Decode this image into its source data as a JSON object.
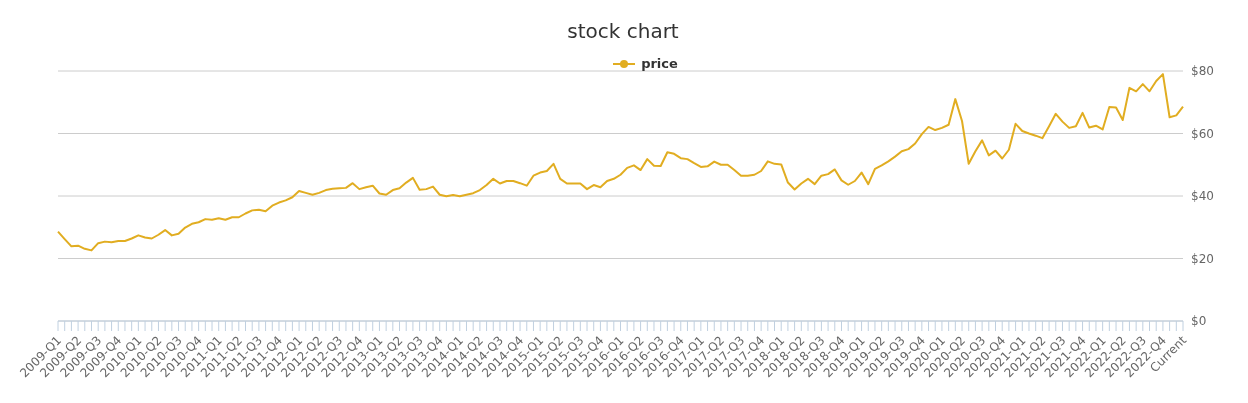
{
  "chart_data": {
    "type": "line",
    "title": "stock chart",
    "categories": [
      "2009-Q1",
      null,
      null,
      "2009-Q2",
      null,
      null,
      "2009-Q3",
      null,
      null,
      "2009-Q4",
      null,
      null,
      "2010-Q1",
      null,
      null,
      "2010-Q2",
      null,
      null,
      "2010-Q3",
      null,
      null,
      "2010-Q4",
      null,
      null,
      "2011-Q1",
      null,
      null,
      "2011-Q2",
      null,
      null,
      "2011-Q3",
      null,
      null,
      "2011-Q4",
      null,
      null,
      "2012-Q1",
      null,
      null,
      "2012-Q2",
      null,
      null,
      "2012-Q3",
      null,
      null,
      "2012-Q4",
      null,
      null,
      "2013-Q1",
      null,
      null,
      "2013-Q2",
      null,
      null,
      "2013-Q3",
      null,
      null,
      "2013-Q4",
      null,
      null,
      "2014-Q1",
      null,
      null,
      "2014-Q2",
      null,
      null,
      "2014-Q3",
      null,
      null,
      "2014-Q4",
      null,
      null,
      "2015-Q1",
      null,
      null,
      "2015-Q2",
      null,
      null,
      "2015-Q3",
      null,
      null,
      "2015-Q4",
      null,
      null,
      "2016-Q1",
      null,
      null,
      "2016-Q2",
      null,
      null,
      "2016-Q3",
      null,
      null,
      "2016-Q4",
      null,
      null,
      "2017-Q1",
      null,
      null,
      "2017-Q2",
      null,
      null,
      "2017-Q3",
      null,
      null,
      "2017-Q4",
      null,
      null,
      "2018-Q1",
      null,
      null,
      "2018-Q2",
      null,
      null,
      "2018-Q3",
      null,
      null,
      "2018-Q4",
      null,
      null,
      "2019-Q1",
      null,
      null,
      "2019-Q2",
      null,
      null,
      "2019-Q3",
      null,
      null,
      "2019-Q4",
      null,
      null,
      "2020-Q1",
      null,
      null,
      "2020-Q2",
      null,
      null,
      "2020-Q3",
      null,
      null,
      "2020-Q4",
      null,
      null,
      "2021-Q1",
      null,
      null,
      "2021-Q2",
      null,
      null,
      "2021-Q3",
      null,
      null,
      "2021-Q4",
      null,
      null,
      "2022-Q1",
      null,
      null,
      "2022-Q2",
      null,
      null,
      "2022-Q3",
      null,
      null,
      "2022-Q4",
      null,
      null,
      "Current"
    ],
    "series": [
      {
        "name": "price",
        "color": "#e1ad21",
        "values": [
          28.6,
          26.2,
          23.9,
          24.1,
          23.1,
          22.6,
          24.9,
          25.4,
          25.2,
          25.6,
          25.6,
          26.4,
          27.4,
          26.7,
          26.4,
          27.6,
          29.1,
          27.4,
          27.9,
          29.9,
          31.1,
          31.6,
          32.6,
          32.4,
          32.9,
          32.4,
          33.2,
          33.2,
          34.4,
          35.4,
          35.6,
          35.1,
          36.9,
          37.9,
          38.6,
          39.6,
          41.6,
          41.0,
          40.4,
          41.0,
          41.9,
          42.3,
          42.5,
          42.6,
          44.1,
          42.2,
          42.8,
          43.3,
          40.8,
          40.4,
          41.9,
          42.5,
          44.3,
          45.8,
          42.0,
          42.2,
          43.0,
          40.4,
          39.9,
          40.3,
          39.9,
          40.4,
          40.9,
          41.9,
          43.5,
          45.5,
          44.0,
          44.8,
          44.8,
          44.1,
          43.3,
          46.5,
          47.5,
          48.0,
          50.3,
          45.5,
          44.0,
          44.0,
          44.0,
          42.2,
          43.5,
          42.8,
          44.8,
          45.5,
          46.8,
          49.0,
          49.8,
          48.3,
          51.8,
          49.7,
          49.6,
          54.0,
          53.5,
          52.1,
          51.8,
          50.5,
          49.3,
          49.5,
          51.0,
          50.0,
          50.0,
          48.3,
          46.5,
          46.5,
          46.8,
          48.0,
          51.1,
          50.3,
          50.1,
          44.3,
          42.1,
          44.0,
          45.5,
          43.8,
          46.5,
          47.0,
          48.5,
          45.0,
          43.6,
          44.8,
          47.5,
          43.8,
          48.7,
          49.8,
          51.1,
          52.6,
          54.3,
          55.0,
          56.8,
          59.8,
          62.1,
          61.1,
          61.8,
          62.8,
          71.0,
          64.0,
          50.3,
          54.3,
          57.8,
          53.0,
          54.5,
          52.0,
          54.8,
          63.1,
          60.8,
          60.0,
          59.3,
          58.5,
          62.3,
          66.3,
          63.8,
          61.8,
          62.3,
          66.6,
          61.9,
          62.5,
          61.3,
          68.5,
          68.3,
          64.3,
          74.6,
          73.5,
          75.8,
          73.5,
          76.8,
          79.0,
          65.2,
          65.8,
          68.6
        ]
      }
    ],
    "ylim": [
      0,
      80
    ],
    "yticks": [
      {
        "value": 0,
        "label": "$0"
      },
      {
        "value": 20,
        "label": "$20"
      },
      {
        "value": 40,
        "label": "$40"
      },
      {
        "value": 60,
        "label": "$60"
      },
      {
        "value": 80,
        "label": "$80"
      }
    ],
    "grid": "y",
    "legend": "top",
    "marker": "none",
    "line_style": "solid"
  }
}
